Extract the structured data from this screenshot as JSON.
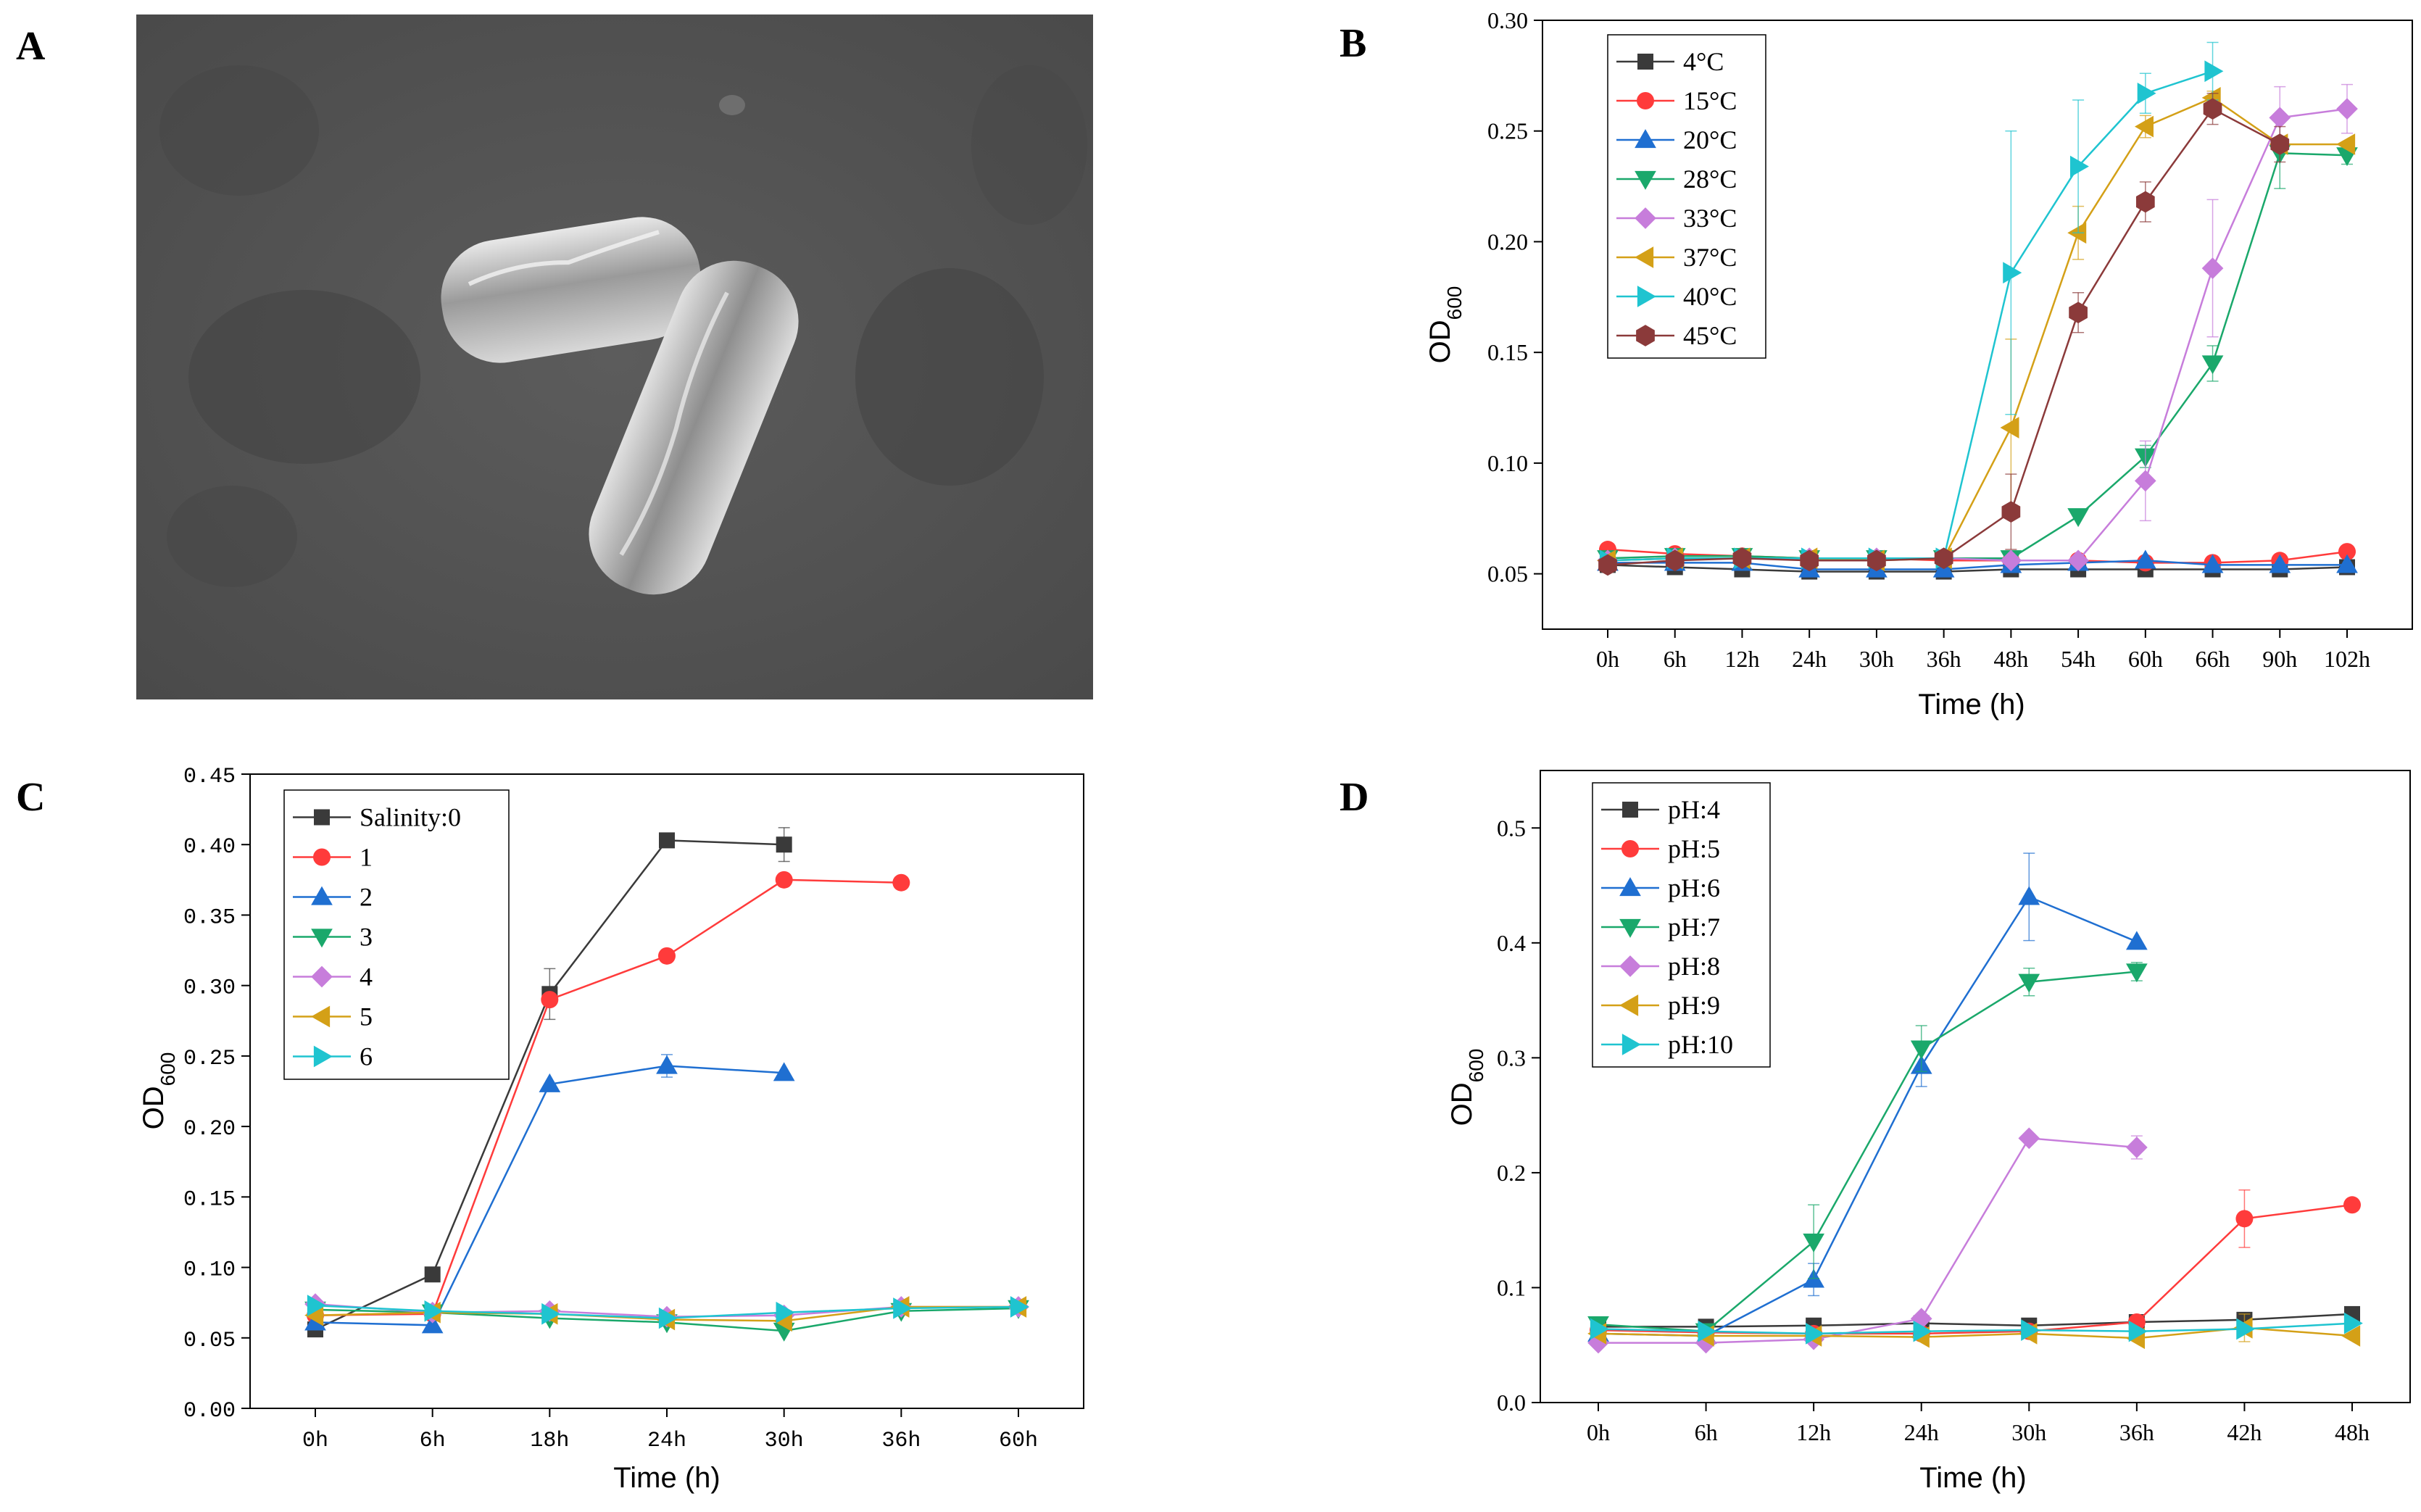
{
  "panels": {
    "A": {
      "letter": "A"
    },
    "B": {
      "letter": "B"
    },
    "C": {
      "letter": "C"
    },
    "D": {
      "letter": "D"
    }
  },
  "chart_data": [
    {
      "id": "B",
      "type": "line",
      "title": "",
      "xlabel": "Time (h)",
      "ylabel_main": "OD",
      "ylabel_sub": "600",
      "categories": [
        "0h",
        "6h",
        "12h",
        "24h",
        "30h",
        "36h",
        "48h",
        "54h",
        "60h",
        "66h",
        "90h",
        "102h"
      ],
      "ylim": [
        0.025,
        0.3
      ],
      "yticks": [
        0.05,
        0.1,
        0.15,
        0.2,
        0.25,
        0.3
      ],
      "ytick_labels": [
        "0.05",
        "0.10",
        "0.15",
        "0.20",
        "0.25",
        "0.30"
      ],
      "legend_position": "top-left",
      "series": [
        {
          "name": "4°C",
          "color": "#3a3a3a",
          "marker": "square",
          "values": [
            0.054,
            0.053,
            0.052,
            0.051,
            0.051,
            0.051,
            0.052,
            0.052,
            0.052,
            0.052,
            0.052,
            0.053
          ],
          "errors": []
        },
        {
          "name": "15°C",
          "color": "#ff3b3b",
          "marker": "circle",
          "values": [
            0.061,
            0.059,
            0.058,
            0.057,
            0.057,
            0.056,
            0.056,
            0.056,
            0.055,
            0.055,
            0.056,
            0.06
          ],
          "errors": []
        },
        {
          "name": "20°C",
          "color": "#1f6fd1",
          "marker": "triangle-up",
          "values": [
            0.055,
            0.055,
            0.055,
            0.052,
            0.052,
            0.052,
            0.054,
            0.055,
            0.056,
            0.054,
            0.054,
            0.054
          ],
          "errors": []
        },
        {
          "name": "28°C",
          "color": "#1aa86b",
          "marker": "triangle-down",
          "values": [
            0.057,
            0.058,
            0.058,
            0.057,
            0.057,
            0.057,
            0.057,
            0.076,
            0.103,
            0.145,
            0.24,
            0.239
          ],
          "errors": [
            0,
            0,
            0,
            0,
            0,
            0,
            0,
            0,
            0.005,
            0.008,
            0.016,
            0.004
          ]
        },
        {
          "name": "33°C",
          "color": "#c77ddb",
          "marker": "diamond",
          "values": [
            0.056,
            0.057,
            0.057,
            0.057,
            0.057,
            0.057,
            0.056,
            0.056,
            0.092,
            0.188,
            0.256,
            0.26
          ],
          "errors": [
            0,
            0,
            0,
            0,
            0,
            0,
            0,
            0,
            0.018,
            0.031,
            0.014,
            0.011
          ]
        },
        {
          "name": "37°C",
          "color": "#d4a017",
          "marker": "triangle-left",
          "values": [
            0.056,
            0.057,
            0.057,
            0.057,
            0.056,
            0.057,
            0.116,
            0.204,
            0.252,
            0.265,
            0.244,
            0.244
          ],
          "errors": [
            0,
            0,
            0,
            0,
            0,
            0,
            0.04,
            0.012,
            0.005,
            0.003,
            0,
            0
          ]
        },
        {
          "name": "40°C",
          "color": "#1fc4d0",
          "marker": "triangle-right",
          "values": [
            0.056,
            0.057,
            0.057,
            0.057,
            0.057,
            0.057,
            0.186,
            0.234,
            0.267,
            0.277,
            null,
            null
          ],
          "errors": [
            0,
            0,
            0,
            0,
            0,
            0,
            0.064,
            0.03,
            0.009,
            0.013,
            0,
            0
          ]
        },
        {
          "name": "45°C",
          "color": "#8b3a3a",
          "marker": "hexagon",
          "values": [
            0.054,
            0.056,
            0.057,
            0.056,
            0.056,
            0.057,
            0.078,
            0.168,
            0.218,
            0.26,
            0.244,
            null
          ],
          "errors": [
            0,
            0,
            0,
            0,
            0,
            0,
            0.017,
            0.009,
            0.009,
            0.007,
            0.008,
            0
          ]
        }
      ]
    },
    {
      "id": "C",
      "type": "line",
      "title": "",
      "xlabel": "Time (h)",
      "ylabel_main": "OD",
      "ylabel_sub": "600",
      "categories": [
        "0h",
        "6h",
        "18h",
        "24h",
        "30h",
        "36h",
        "60h"
      ],
      "ylim": [
        0,
        0.45
      ],
      "yticks": [
        0,
        0.05,
        0.1,
        0.15,
        0.2,
        0.25,
        0.3,
        0.35,
        0.4,
        0.45
      ],
      "ytick_labels": [
        "0.00",
        "0.05",
        "0.10",
        "0.15",
        "0.20",
        "0.25",
        "0.30",
        "0.35",
        "0.40",
        "0.45"
      ],
      "legend_position": "top-left",
      "series": [
        {
          "name": "Salinity:0",
          "color": "#3a3a3a",
          "marker": "square",
          "values": [
            0.056,
            0.095,
            0.294,
            0.403,
            0.4,
            null,
            null
          ],
          "errors": [
            0,
            0,
            0.018,
            0,
            0.012,
            0,
            0
          ]
        },
        {
          "name": "1",
          "color": "#ff3b3b",
          "marker": "circle",
          "values": [
            0.066,
            0.067,
            0.29,
            0.321,
            0.375,
            0.373,
            null
          ],
          "errors": []
        },
        {
          "name": "2",
          "color": "#1f6fd1",
          "marker": "triangle-up",
          "values": [
            0.061,
            0.059,
            0.23,
            0.243,
            0.238,
            null,
            null
          ],
          "errors": [
            0,
            0,
            0,
            0.008,
            0,
            0,
            0
          ]
        },
        {
          "name": "3",
          "color": "#1aa86b",
          "marker": "triangle-down",
          "values": [
            0.07,
            0.068,
            0.064,
            0.061,
            0.055,
            0.069,
            0.071
          ],
          "errors": []
        },
        {
          "name": "4",
          "color": "#c77ddb",
          "marker": "diamond",
          "values": [
            0.074,
            0.068,
            0.069,
            0.065,
            0.066,
            0.072,
            0.072
          ],
          "errors": []
        },
        {
          "name": "5",
          "color": "#d4a017",
          "marker": "triangle-left",
          "values": [
            0.066,
            0.068,
            0.067,
            0.063,
            0.062,
            0.072,
            0.072
          ],
          "errors": []
        },
        {
          "name": "6",
          "color": "#1fc4d0",
          "marker": "triangle-right",
          "values": [
            0.073,
            0.069,
            0.067,
            0.064,
            0.068,
            0.071,
            0.072
          ],
          "errors": []
        }
      ]
    },
    {
      "id": "D",
      "type": "line",
      "title": "",
      "xlabel": "Time (h)",
      "ylabel_main": "OD",
      "ylabel_sub": "600",
      "categories": [
        "0h",
        "6h",
        "12h",
        "24h",
        "30h",
        "36h",
        "42h",
        "48h"
      ],
      "ylim": [
        0,
        0.55
      ],
      "yticks": [
        0,
        0.1,
        0.2,
        0.3,
        0.4,
        0.5
      ],
      "ytick_labels": [
        "0.0",
        "0.1",
        "0.2",
        "0.3",
        "0.4",
        "0.5"
      ],
      "legend_position": "top-left",
      "series": [
        {
          "name": "pH:4",
          "color": "#3a3a3a",
          "marker": "square",
          "values": [
            0.066,
            0.066,
            0.067,
            0.069,
            0.067,
            0.07,
            0.072,
            0.077
          ],
          "errors": []
        },
        {
          "name": "pH:5",
          "color": "#ff3b3b",
          "marker": "circle",
          "values": [
            0.063,
            0.061,
            0.06,
            0.06,
            0.062,
            0.07,
            0.16,
            0.172
          ],
          "errors": [
            0,
            0,
            0,
            0,
            0,
            0,
            0.025,
            0
          ]
        },
        {
          "name": "pH:6",
          "color": "#1f6fd1",
          "marker": "triangle-up",
          "values": [
            0.06,
            0.058,
            0.107,
            0.293,
            0.44,
            0.401,
            null,
            null
          ],
          "errors": [
            0,
            0,
            0.014,
            0.018,
            0.038,
            0,
            0,
            0
          ]
        },
        {
          "name": "pH:7",
          "color": "#1aa86b",
          "marker": "triangle-down",
          "values": [
            0.068,
            0.062,
            0.14,
            0.308,
            0.366,
            0.375,
            null,
            null
          ],
          "errors": [
            0,
            0,
            0.032,
            0.02,
            0.012,
            0.008,
            0,
            0
          ]
        },
        {
          "name": "pH:8",
          "color": "#c77ddb",
          "marker": "diamond",
          "values": [
            0.052,
            0.052,
            0.055,
            0.073,
            0.23,
            0.222,
            null,
            null
          ],
          "errors": [
            0,
            0,
            0,
            0,
            0,
            0.01,
            0,
            0
          ]
        },
        {
          "name": "pH:9",
          "color": "#d4a017",
          "marker": "triangle-left",
          "values": [
            0.06,
            0.058,
            0.058,
            0.057,
            0.06,
            0.056,
            0.065,
            0.058
          ],
          "errors": [
            0,
            0,
            0,
            0,
            0,
            0,
            0.012,
            0
          ]
        },
        {
          "name": "pH:10",
          "color": "#1fc4d0",
          "marker": "triangle-right",
          "values": [
            0.064,
            0.062,
            0.06,
            0.062,
            0.063,
            0.062,
            0.064,
            0.069
          ],
          "errors": []
        }
      ]
    }
  ]
}
